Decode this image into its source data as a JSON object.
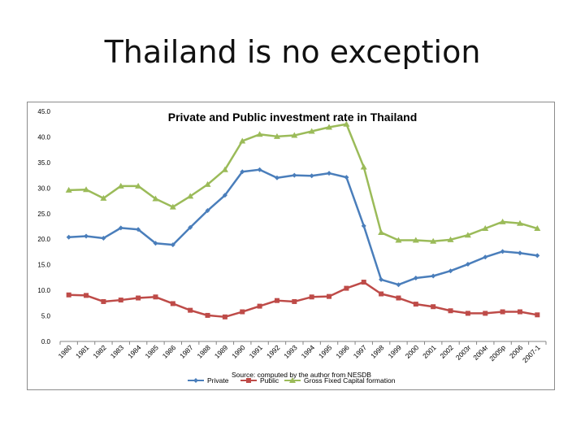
{
  "slide": {
    "title": "Thailand is no exception"
  },
  "chart_data": {
    "type": "line",
    "title": "Private and Public investment rate in Thailand",
    "source": "Source: computed by the author from NESDB",
    "xlabel": "",
    "ylabel": "",
    "ylim": [
      0,
      45
    ],
    "yticks": [
      "0.0",
      "5.0",
      "10.0",
      "15.0",
      "20.0",
      "25.0",
      "30.0",
      "35.0",
      "40.0",
      "45.0"
    ],
    "grid": false,
    "legend": "bottom",
    "categories": [
      "1980",
      "1981",
      "1982",
      "1983",
      "1984",
      "1985",
      "1986",
      "1987",
      "1988",
      "1989",
      "1990",
      "1991",
      "1992",
      "1993",
      "1994",
      "1995",
      "1996",
      "1997",
      "1998",
      "1999",
      "2000",
      "2001",
      "2002",
      "2003r",
      "2004r",
      "2005p",
      "2006",
      "2007-1"
    ],
    "series": [
      {
        "name": "Private",
        "color": "#4a7ebb",
        "marker": "diamond",
        "values": [
          20.4,
          20.6,
          20.2,
          22.2,
          21.9,
          19.2,
          18.9,
          22.3,
          25.6,
          28.6,
          33.2,
          33.6,
          32.0,
          32.5,
          32.4,
          32.9,
          32.1,
          22.6,
          12.1,
          11.1,
          12.4,
          12.8,
          13.8,
          15.1,
          16.5,
          17.6,
          17.3,
          16.8
        ]
      },
      {
        "name": "Public",
        "color": "#be4b48",
        "marker": "square",
        "values": [
          9.1,
          9.0,
          7.8,
          8.1,
          8.5,
          8.7,
          7.4,
          6.1,
          5.1,
          4.8,
          5.8,
          6.9,
          8.0,
          7.8,
          8.7,
          8.8,
          10.4,
          11.6,
          9.3,
          8.5,
          7.3,
          6.8,
          6.0,
          5.5,
          5.5,
          5.8,
          5.8,
          5.2
        ]
      },
      {
        "name": "Gross Fixed Capital formation",
        "color": "#9bbb59",
        "marker": "triangle",
        "values": [
          29.6,
          29.7,
          28.0,
          30.4,
          30.4,
          27.9,
          26.3,
          28.4,
          30.7,
          33.6,
          39.2,
          40.5,
          40.1,
          40.3,
          41.1,
          41.9,
          42.5,
          34.1,
          21.3,
          19.8,
          19.8,
          19.6,
          19.9,
          20.8,
          22.1,
          23.4,
          23.1,
          22.1
        ]
      }
    ]
  }
}
